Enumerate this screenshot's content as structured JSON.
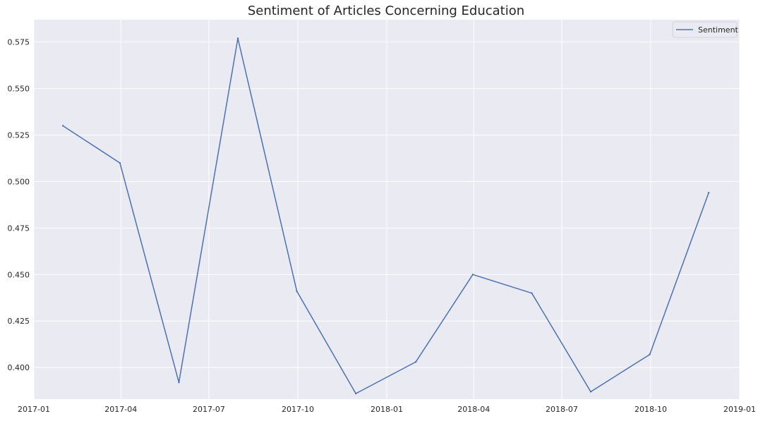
{
  "chart_data": {
    "type": "line",
    "title": "Sentiment of Articles Concerning Education",
    "xlabel": "",
    "ylabel": "",
    "x_type": "date",
    "xlim": [
      "2017-01-01",
      "2019-01-01"
    ],
    "ylim": [
      0.383,
      0.587
    ],
    "x_ticks": [
      "2017-01",
      "2017-04",
      "2017-07",
      "2017-10",
      "2018-01",
      "2018-04",
      "2018-07",
      "2018-10",
      "2019-01"
    ],
    "y_ticks": [
      "0.400",
      "0.425",
      "0.450",
      "0.475",
      "0.500",
      "0.525",
      "0.550",
      "0.575"
    ],
    "grid": true,
    "legend_position": "top-right",
    "series": [
      {
        "name": "Sentiment",
        "color": "#4c72b0",
        "x": [
          "2017-01-31",
          "2017-03-31",
          "2017-05-31",
          "2017-07-31",
          "2017-09-30",
          "2017-11-30",
          "2018-01-31",
          "2018-03-31",
          "2018-05-31",
          "2018-07-31",
          "2018-09-30",
          "2018-11-30"
        ],
        "y": [
          0.53,
          0.51,
          0.392,
          0.577,
          0.441,
          0.386,
          0.403,
          0.45,
          0.44,
          0.387,
          0.407,
          0.494
        ]
      }
    ]
  },
  "colors": {
    "plot_background": "#eaeaf2",
    "grid": "#ffffff",
    "text": "#262626"
  }
}
